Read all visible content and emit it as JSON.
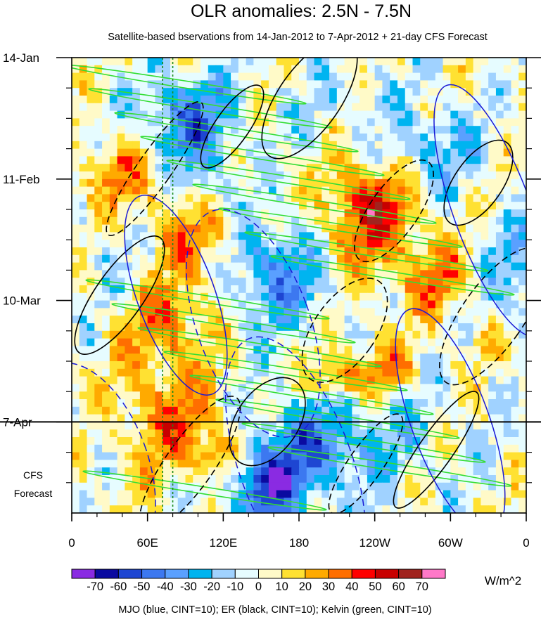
{
  "chart_data": {
    "type": "heatmap",
    "title": "OLR anomalies: 2.5N - 7.5N",
    "subtitle": "Satellite-based bservations from 14-Jan-2012 to 7-Apr-2012 + 21-day CFS Forecast",
    "x_ticks": [
      "0",
      "60E",
      "120E",
      "180",
      "120W",
      "60W",
      "0"
    ],
    "x_tick_lon": [
      0,
      60,
      120,
      180,
      240,
      300,
      360
    ],
    "xlim": [
      0,
      360
    ],
    "y_ticks": [
      "14-Jan",
      "11-Feb",
      "10-Mar",
      "7-Apr"
    ],
    "y_tick_day": [
      0,
      28,
      56,
      84
    ],
    "ylim_days": [
      0,
      105
    ],
    "forecast_start_day": 84,
    "forecast_label": [
      "CFS",
      "Forecast"
    ],
    "colorbar_levels": [
      "-70",
      "-60",
      "-50",
      "-40",
      "-30",
      "-20",
      "-10",
      "0",
      "10",
      "20",
      "30",
      "40",
      "50",
      "60",
      "70"
    ],
    "colorbar_colors": [
      "#8a2be2",
      "#0a0aa0",
      "#1e46d2",
      "#3c78f0",
      "#5aa0ff",
      "#00b4f0",
      "#a0d2ff",
      "#e6fcff",
      "#fffac8",
      "#ffe132",
      "#ffaa00",
      "#ff6e00",
      "#ff0000",
      "#c80000",
      "#a0231e",
      "#ff78c8"
    ],
    "colorbar_units": "W/m^2",
    "contour_legend": "MJO (blue, CINT=10); ER (black, CINT=10); Kelvin (green, CINT=10)",
    "series": [
      {
        "name": "MJO",
        "color": "#1a1ad6"
      },
      {
        "name": "ER",
        "color": "#000000"
      },
      {
        "name": "Kelvin",
        "color": "#33dd33"
      }
    ]
  }
}
